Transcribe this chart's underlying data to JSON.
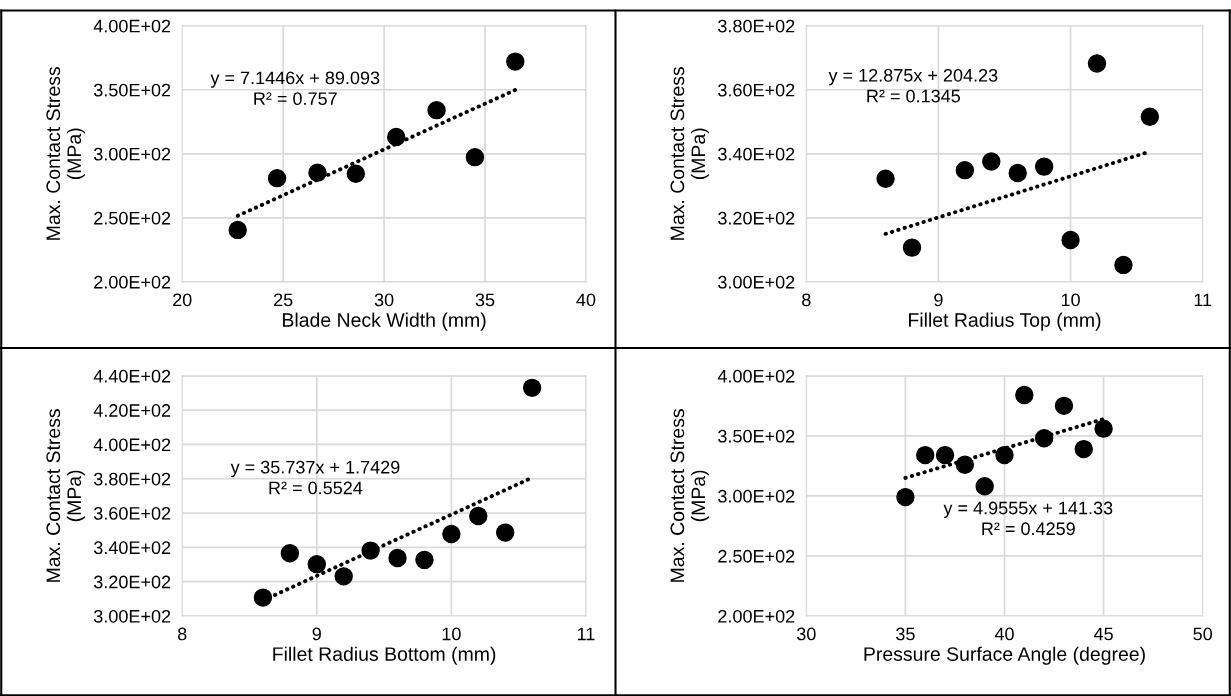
{
  "chart_data": [
    {
      "type": "scatter",
      "xlabel": "Blade Neck Width (mm)",
      "ylabel": "Max. Contact Stress\n(MPa)",
      "xlim": [
        20,
        40
      ],
      "xticks": [
        20,
        25,
        30,
        35,
        40
      ],
      "ylim": [
        200,
        400
      ],
      "yticks": [
        {
          "value": 200,
          "label": "2.00E+02"
        },
        {
          "value": 250,
          "label": "2.50E+02"
        },
        {
          "value": 300,
          "label": "3.00E+02"
        },
        {
          "value": 350,
          "label": "3.50E+02"
        },
        {
          "value": 400,
          "label": "4.00E+02"
        }
      ],
      "grid": true,
      "legend": false,
      "series": [
        {
          "color": "#000000",
          "marker": "circle",
          "x": [
            22.75,
            24.7,
            26.7,
            28.6,
            30.6,
            32.6,
            34.5,
            36.5
          ],
          "values": [
            240.6,
            281.0,
            285.3,
            284.4,
            313.2,
            334.1,
            297.4,
            372.0
          ]
        },
        {
          "type": "line",
          "color": "#000000",
          "line_style": "dotted",
          "x": [
            22.75,
            36.5
          ],
          "values": [
            251.6,
            349.9
          ]
        }
      ],
      "annotations": [
        "y = 7.1446x + 89.093\nR² = 0.757"
      ]
    },
    {
      "type": "scatter",
      "xlabel": "Fillet Radius Top (mm)",
      "ylabel": "Max. Contact Stress\n(MPa)",
      "xlim": [
        8,
        11
      ],
      "xticks": [
        8,
        9,
        10,
        11
      ],
      "ylim": [
        300,
        380
      ],
      "yticks": [
        {
          "value": 300,
          "label": "3.00E+02"
        },
        {
          "value": 320,
          "label": "3.20E+02"
        },
        {
          "value": 340,
          "label": "3.40E+02"
        },
        {
          "value": 360,
          "label": "3.60E+02"
        },
        {
          "value": 380,
          "label": "3.80E+02"
        }
      ],
      "grid": true,
      "legend": false,
      "series": [
        {
          "color": "#000000",
          "marker": "circle",
          "x": [
            8.6,
            8.8,
            9.2,
            9.4,
            9.6,
            9.8,
            10.0,
            10.2,
            10.4,
            10.6
          ],
          "values": [
            332.2,
            310.7,
            334.9,
            337.6,
            334.0,
            336.0,
            313.1,
            368.2,
            305.3,
            351.6
          ]
        },
        {
          "type": "line",
          "color": "#000000",
          "line_style": "dotted",
          "x": [
            8.6,
            10.6
          ],
          "values": [
            315.0,
            340.7
          ]
        }
      ],
      "annotations": [
        "y = 12.875x + 204.23\nR² = 0.1345"
      ]
    },
    {
      "type": "scatter",
      "xlabel": "Fillet Radius Bottom (mm)",
      "ylabel": "Max. Contact Stress\n(MPa)",
      "xlim": [
        8,
        11
      ],
      "xticks": [
        8,
        9,
        10,
        11
      ],
      "ylim": [
        300,
        440
      ],
      "yticks": [
        {
          "value": 300,
          "label": "3.00E+02"
        },
        {
          "value": 320,
          "label": "3.20E+02"
        },
        {
          "value": 340,
          "label": "3.40E+02"
        },
        {
          "value": 360,
          "label": "3.60E+02"
        },
        {
          "value": 380,
          "label": "3.80E+02"
        },
        {
          "value": 400,
          "label": "4.00E+02"
        },
        {
          "value": 420,
          "label": "4.20E+02"
        },
        {
          "value": 440,
          "label": "4.40E+02"
        }
      ],
      "grid": true,
      "legend": false,
      "series": [
        {
          "color": "#000000",
          "marker": "circle",
          "x": [
            8.6,
            8.8,
            9.0,
            9.2,
            9.4,
            9.6,
            9.8,
            10.0,
            10.2,
            10.4,
            10.6
          ],
          "values": [
            310.7,
            336.6,
            330.2,
            323.1,
            338.1,
            333.8,
            332.7,
            347.8,
            358.3,
            348.6,
            433.0
          ]
        },
        {
          "type": "line",
          "color": "#000000",
          "line_style": "dotted",
          "x": [
            8.6,
            10.6
          ],
          "values": [
            309.1,
            380.6
          ]
        }
      ],
      "annotations": [
        "y = 35.737x + 1.7429\nR² = 0.5524"
      ]
    },
    {
      "type": "scatter",
      "xlabel": "Pressure Surface Angle (degree)",
      "ylabel": "Max. Contact Stress\n(MPa)",
      "xlim": [
        30,
        50
      ],
      "xticks": [
        30,
        35,
        40,
        45,
        50
      ],
      "ylim": [
        200,
        400
      ],
      "yticks": [
        {
          "value": 200,
          "label": "2.00E+02"
        },
        {
          "value": 250,
          "label": "2.50E+02"
        },
        {
          "value": 300,
          "label": "3.00E+02"
        },
        {
          "value": 350,
          "label": "3.50E+02"
        },
        {
          "value": 400,
          "label": "4.00E+02"
        }
      ],
      "grid": true,
      "legend": false,
      "series": [
        {
          "color": "#000000",
          "marker": "circle",
          "x": [
            35,
            36,
            37,
            38,
            39,
            40,
            41,
            42,
            43,
            44,
            45
          ],
          "values": [
            299,
            334,
            334,
            326,
            308,
            334,
            384,
            348,
            375,
            339,
            356
          ]
        },
        {
          "type": "line",
          "color": "#000000",
          "line_style": "dotted",
          "x": [
            35,
            45
          ],
          "values": [
            315,
            364
          ]
        }
      ],
      "annotations": [
        "y = 4.9555x + 141.33\nR² = 0.4259"
      ]
    }
  ]
}
